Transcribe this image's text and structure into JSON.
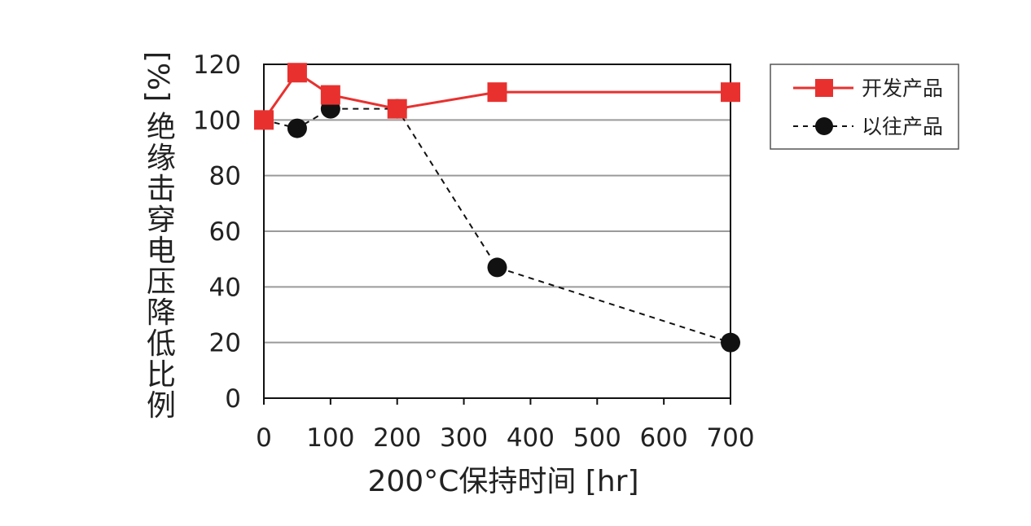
{
  "chart_data": {
    "type": "line",
    "xlabel": "200°C保持时间 [hr]",
    "ylabel": "绝缘击穿电压降低比例",
    "yunit": "[%]",
    "x_ticks": [
      "0",
      "100",
      "200",
      "300",
      "400",
      "500",
      "600",
      "700"
    ],
    "y_ticks": [
      "0",
      "20",
      "40",
      "60",
      "80",
      "100",
      "120"
    ],
    "xlim": [
      0,
      700
    ],
    "ylim": [
      0,
      120
    ],
    "grid": "horizontal",
    "legend_position": "top-right",
    "series": [
      {
        "name": "开发产品",
        "color": "#e8312f",
        "marker": "square",
        "line_style": "solid",
        "x": [
          0,
          50,
          100,
          200,
          350,
          700
        ],
        "y": [
          100,
          117,
          109,
          104,
          110,
          110
        ]
      },
      {
        "name": "以往产品",
        "color": "#111111",
        "marker": "circle",
        "line_style": "dashed",
        "x": [
          0,
          50,
          100,
          200,
          350,
          700
        ],
        "y": [
          100,
          97,
          104,
          104,
          47,
          20
        ]
      }
    ]
  }
}
